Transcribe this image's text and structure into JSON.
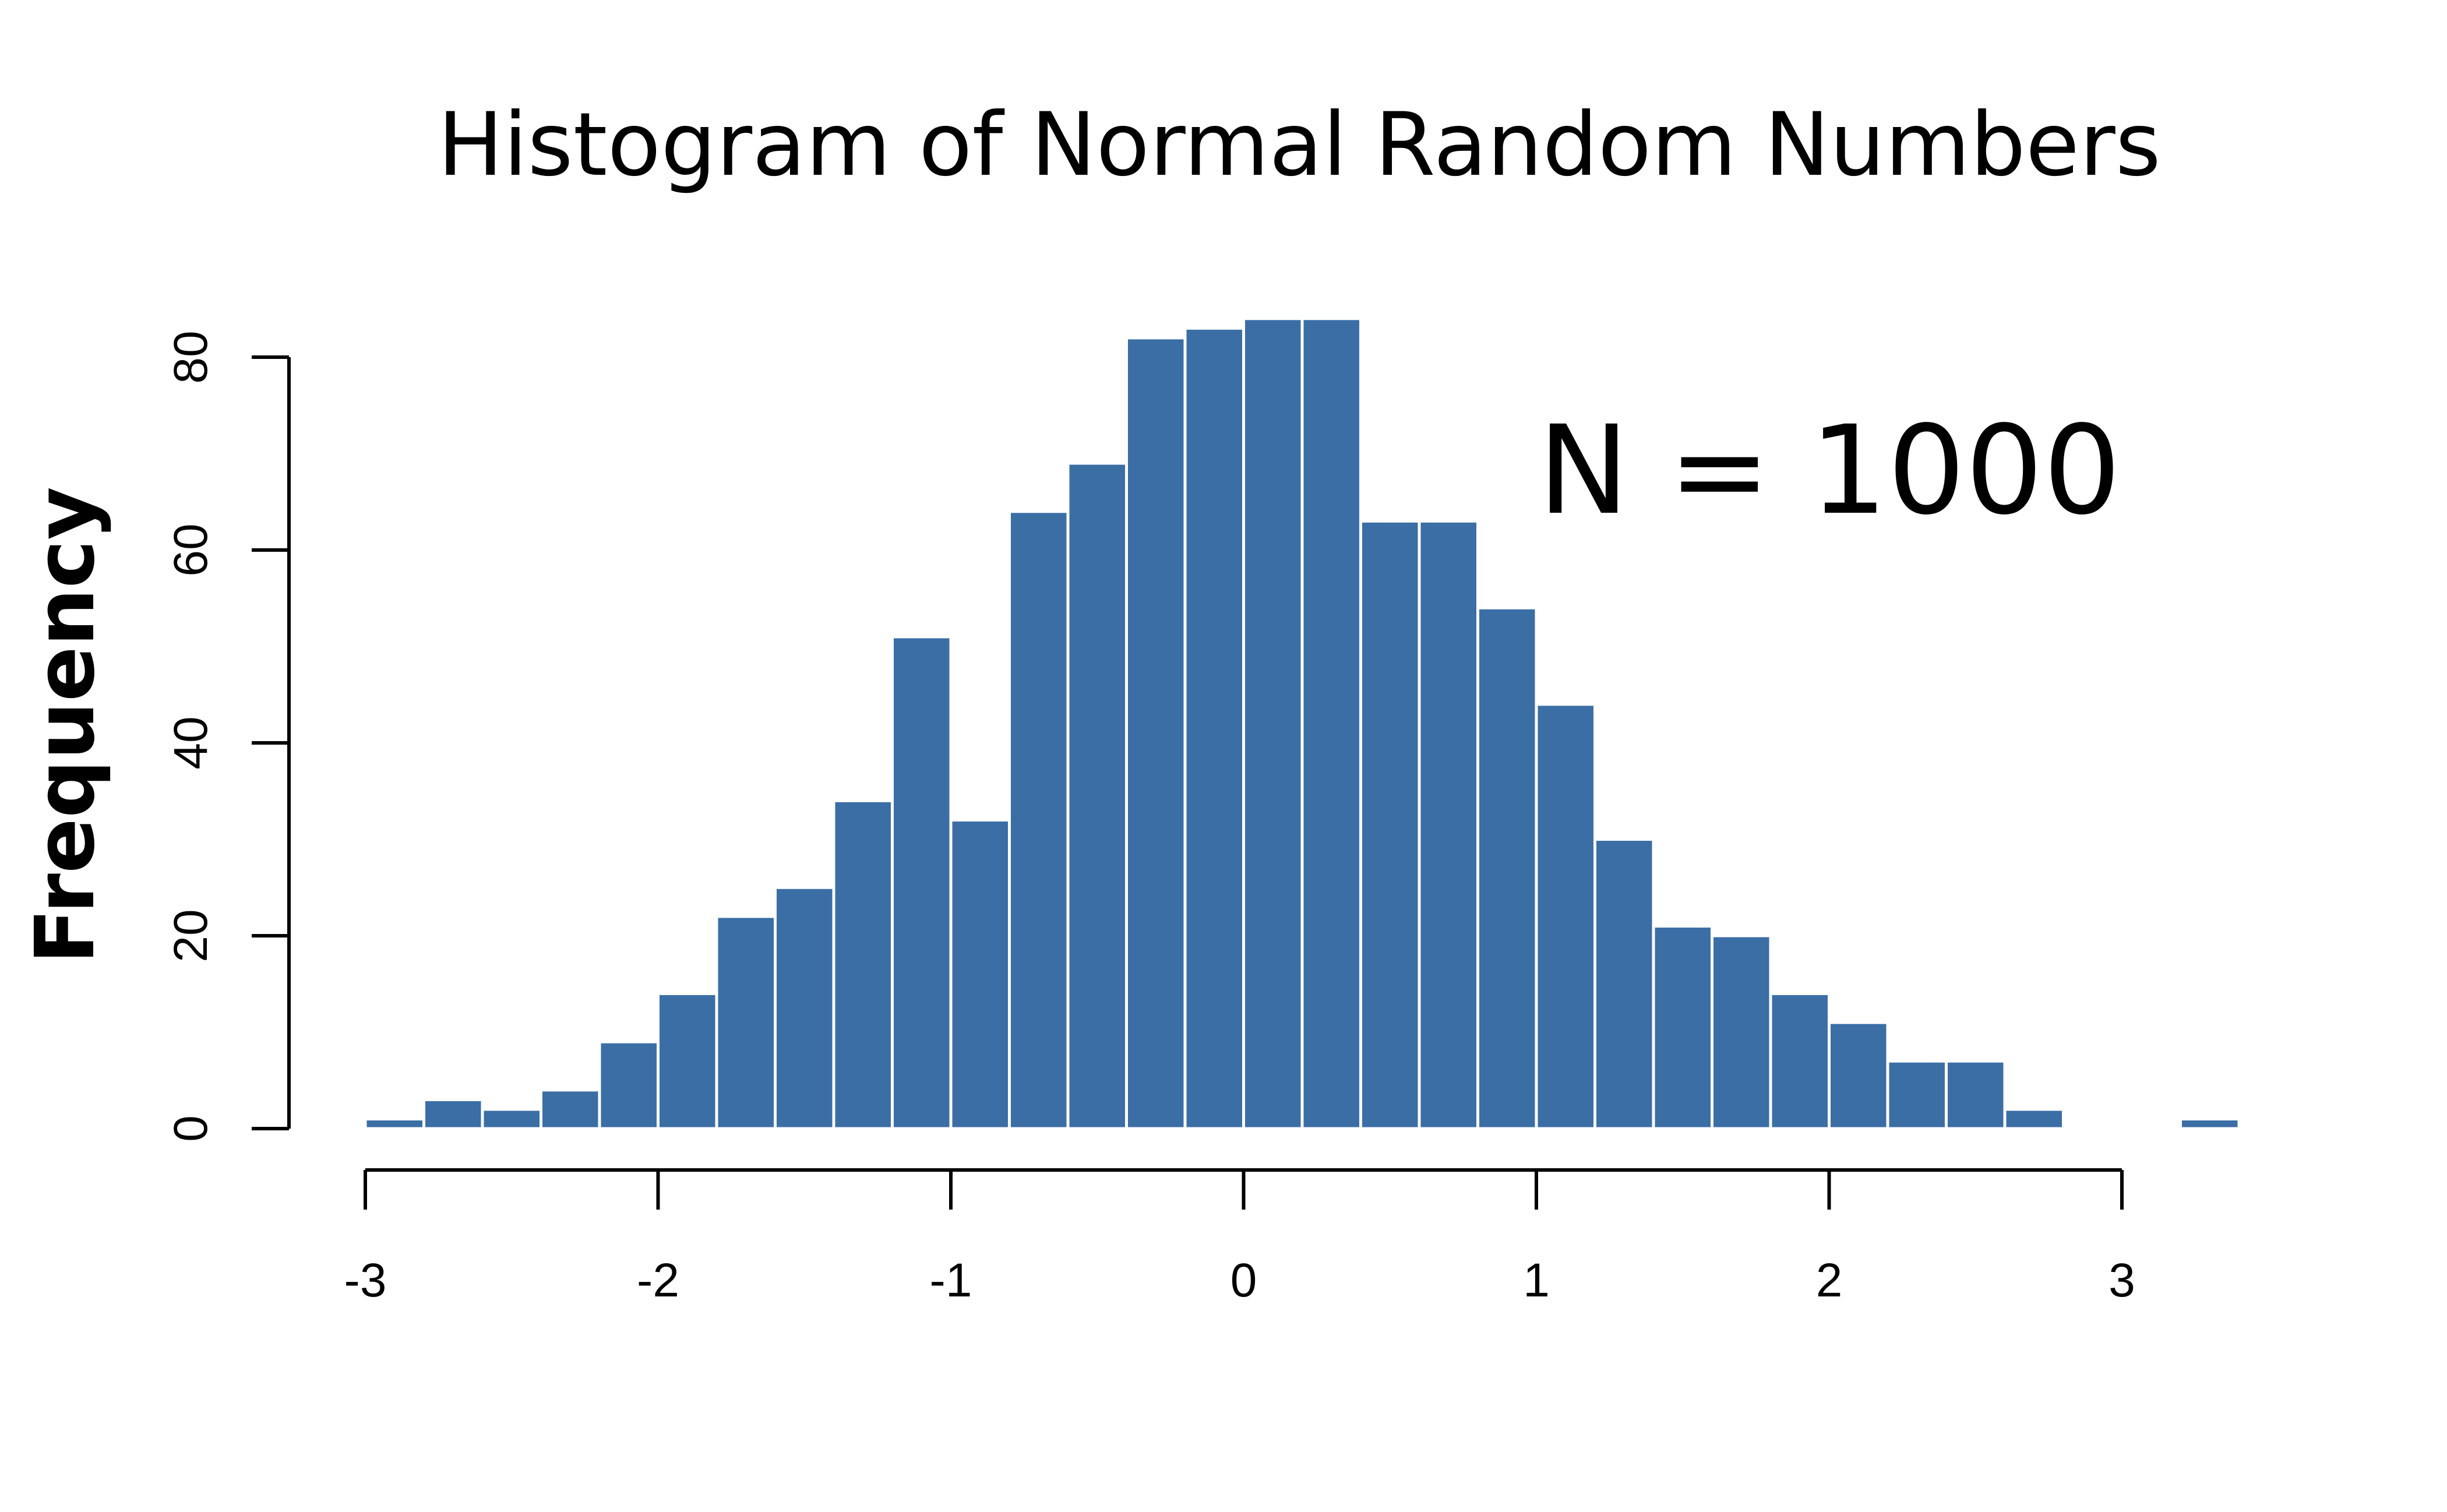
{
  "chart_data": {
    "type": "bar",
    "title": "Histogram of Normal Random Numbers",
    "xlabel": "",
    "ylabel": "Frequency",
    "annotation": "N = 1000",
    "bar_color": "#3b6ea5",
    "grid": false,
    "legend": "none",
    "xlim": [
      -3,
      3.4
    ],
    "ylim": [
      0,
      84
    ],
    "x_ticks": [
      -3,
      -2,
      -1,
      0,
      1,
      2,
      3
    ],
    "x_tick_labels": [
      "-3",
      "-2",
      "-1",
      "0",
      "1",
      "2",
      "3"
    ],
    "y_ticks": [
      0,
      20,
      40,
      60,
      80
    ],
    "y_tick_labels": [
      "0",
      "20",
      "40",
      "60",
      "80"
    ],
    "bins": [
      {
        "x0": -3.0,
        "x1": -2.8,
        "count": 1
      },
      {
        "x0": -2.8,
        "x1": -2.6,
        "count": 3
      },
      {
        "x0": -2.6,
        "x1": -2.4,
        "count": 2
      },
      {
        "x0": -2.4,
        "x1": -2.2,
        "count": 4
      },
      {
        "x0": -2.2,
        "x1": -2.0,
        "count": 9
      },
      {
        "x0": -2.0,
        "x1": -1.8,
        "count": 14
      },
      {
        "x0": -1.8,
        "x1": -1.6,
        "count": 22
      },
      {
        "x0": -1.6,
        "x1": -1.4,
        "count": 25
      },
      {
        "x0": -1.4,
        "x1": -1.2,
        "count": 34
      },
      {
        "x0": -1.2,
        "x1": -1.0,
        "count": 51
      },
      {
        "x0": -1.0,
        "x1": -0.8,
        "count": 32
      },
      {
        "x0": -0.8,
        "x1": -0.6,
        "count": 64
      },
      {
        "x0": -0.6,
        "x1": -0.4,
        "count": 69
      },
      {
        "x0": -0.4,
        "x1": -0.2,
        "count": 82
      },
      {
        "x0": -0.2,
        "x1": 0.0,
        "count": 83
      },
      {
        "x0": 0.0,
        "x1": 0.2,
        "count": 84
      },
      {
        "x0": 0.2,
        "x1": 0.4,
        "count": 84
      },
      {
        "x0": 0.4,
        "x1": 0.6,
        "count": 63
      },
      {
        "x0": 0.6,
        "x1": 0.8,
        "count": 63
      },
      {
        "x0": 0.8,
        "x1": 1.0,
        "count": 54
      },
      {
        "x0": 1.0,
        "x1": 1.2,
        "count": 44
      },
      {
        "x0": 1.2,
        "x1": 1.4,
        "count": 30
      },
      {
        "x0": 1.4,
        "x1": 1.6,
        "count": 21
      },
      {
        "x0": 1.6,
        "x1": 1.8,
        "count": 20
      },
      {
        "x0": 1.8,
        "x1": 2.0,
        "count": 14
      },
      {
        "x0": 2.0,
        "x1": 2.2,
        "count": 11
      },
      {
        "x0": 2.2,
        "x1": 2.4,
        "count": 7
      },
      {
        "x0": 2.4,
        "x1": 2.6,
        "count": 7
      },
      {
        "x0": 2.6,
        "x1": 2.8,
        "count": 2
      },
      {
        "x0": 2.8,
        "x1": 3.0,
        "count": 0
      },
      {
        "x0": 3.0,
        "x1": 3.2,
        "count": 0
      },
      {
        "x0": 3.2,
        "x1": 3.4,
        "count": 1
      }
    ]
  }
}
